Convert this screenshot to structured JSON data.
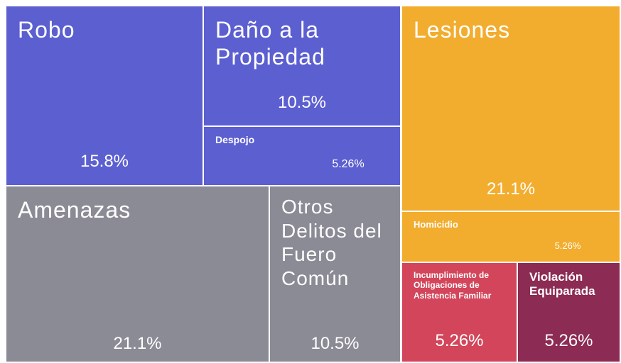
{
  "chart_data": {
    "type": "treemap",
    "categories": [
      "Robo",
      "Daño a la Propiedad",
      "Despojo",
      "Lesiones",
      "Homicidio",
      "Amenazas",
      "Otros Delitos del Fuero Común",
      "Incumplimiento de Obligaciones de Asistencia Familiar",
      "Violación Equiparada"
    ],
    "values": [
      15.8,
      10.5,
      5.26,
      21.1,
      5.26,
      21.1,
      10.5,
      5.26,
      5.26
    ],
    "value_labels": [
      "15.8%",
      "10.5%",
      "5.26%",
      "21.1%",
      "5.26%",
      "21.1%",
      "10.5%",
      "5.26%",
      "5.26%"
    ],
    "colors": [
      "#5c5fd0",
      "#5c5fd0",
      "#5c5fd0",
      "#f2ad2f",
      "#f2ad2f",
      "#8b8b96",
      "#8b8b96",
      "#d3455a",
      "#8c2b53"
    ]
  }
}
